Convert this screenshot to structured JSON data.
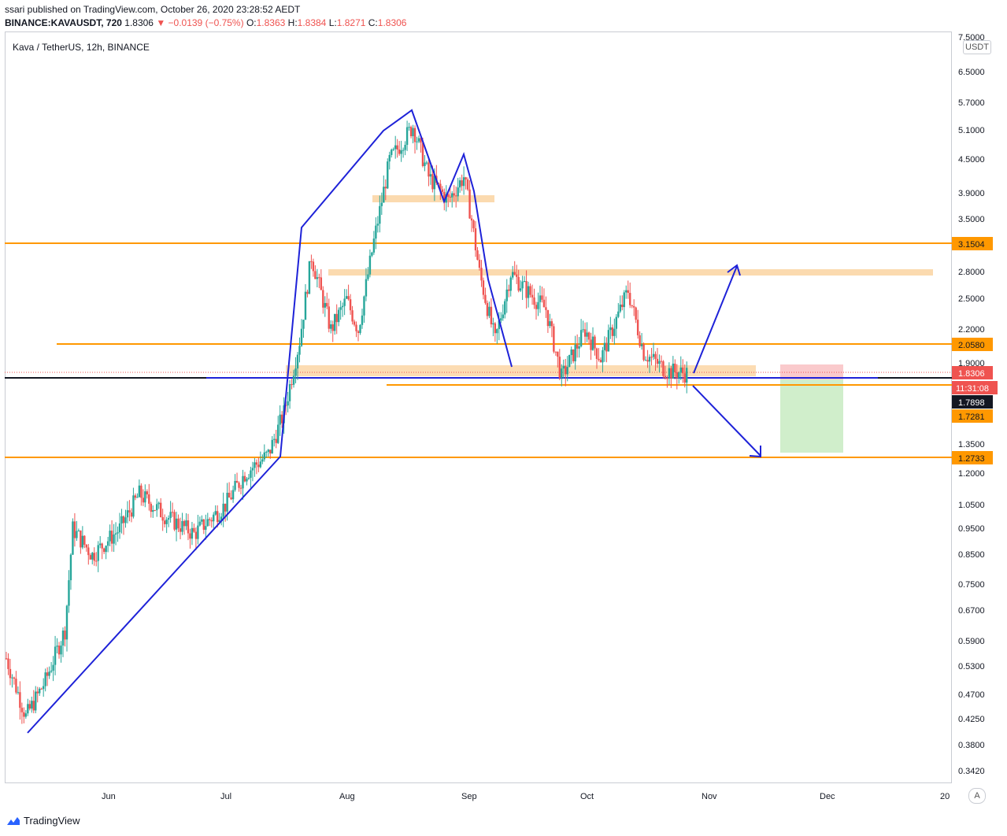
{
  "header": {
    "published": "ssari published on TradingView.com, October 26, 2020 23:28:52 AEDT",
    "symbol": "BINANCE:KAVAUSDT, 720",
    "last": "1.8306",
    "change": "▼ −0.0139 (−0.75%)",
    "open_label": "O:",
    "open": "1.8363",
    "high_label": "H:",
    "high": "1.8384",
    "low_label": "L:",
    "low": "1.8271",
    "close_label": "C:",
    "close": "1.8306"
  },
  "chart_title": "Kava / TetherUS, 12h, BINANCE",
  "currency_button": "USDT",
  "auto_button": "A",
  "footer_logo": "TradingView",
  "price_axis": [
    "7.5000",
    "6.5000",
    "5.7000",
    "5.1000",
    "4.5000",
    "3.9000",
    "3.5000",
    "2.8000",
    "2.5000",
    "2.2000",
    "1.9000",
    "1.3500",
    "1.2000",
    "1.0500",
    "0.9500",
    "0.8500",
    "0.7500",
    "0.6700",
    "0.5900",
    "0.5300",
    "0.4700",
    "0.4250",
    "0.3800",
    "0.3420"
  ],
  "time_axis": [
    "Jun",
    "Jul",
    "Aug",
    "Sep",
    "Oct",
    "Nov",
    "Dec",
    "20"
  ],
  "badges": {
    "level_3": "3.1504",
    "level_2": "2.0580",
    "last_price": "1.8306",
    "countdown": "11:31:08",
    "crosshair": "1.7898",
    "level_1": "1.7281",
    "level_0": "1.2733"
  },
  "colors": {
    "up": "#26a69a",
    "down": "#ef5350",
    "drawing": "#1e22d8",
    "level": "#ff9800",
    "zone": "#fbd6a6"
  },
  "chart_data": {
    "type": "candlestick",
    "title": "Kava / TetherUS, 12h, BINANCE",
    "scale": "log",
    "ylim": [
      0.33,
      7.6
    ],
    "xlim": [
      "2020-05-05",
      "2021-01-01"
    ],
    "horizontal_levels": [
      3.1504,
      2.058,
      1.7281,
      1.2733
    ],
    "close_path": [
      [
        "2020-05-05",
        0.55
      ],
      [
        "2020-05-10",
        0.43
      ],
      [
        "2020-05-15",
        0.5
      ],
      [
        "2020-05-20",
        0.62
      ],
      [
        "2020-05-22",
        0.95
      ],
      [
        "2020-05-27",
        0.85
      ],
      [
        "2020-06-03",
        0.95
      ],
      [
        "2020-06-08",
        1.1
      ],
      [
        "2020-06-15",
        1.0
      ],
      [
        "2020-06-22",
        0.93
      ],
      [
        "2020-06-30",
        1.05
      ],
      [
        "2020-07-05",
        1.2
      ],
      [
        "2020-07-11",
        1.3
      ],
      [
        "2020-07-15",
        1.55
      ],
      [
        "2020-07-19",
        2.1
      ],
      [
        "2020-07-22",
        3.0
      ],
      [
        "2020-07-27",
        2.2
      ],
      [
        "2020-07-31",
        2.5
      ],
      [
        "2020-08-03",
        2.2
      ],
      [
        "2020-08-07",
        3.2
      ],
      [
        "2020-08-11",
        4.5
      ],
      [
        "2020-08-17",
        5.2
      ],
      [
        "2020-08-21",
        4.2
      ],
      [
        "2020-08-26",
        3.8
      ],
      [
        "2020-08-30",
        4.2
      ],
      [
        "2020-09-01",
        3.5
      ],
      [
        "2020-09-03",
        2.8
      ],
      [
        "2020-09-07",
        2.1
      ],
      [
        "2020-09-11",
        2.8
      ],
      [
        "2020-09-15",
        2.6
      ],
      [
        "2020-09-20",
        2.4
      ],
      [
        "2020-09-24",
        1.8
      ],
      [
        "2020-09-30",
        2.2
      ],
      [
        "2020-10-04",
        1.95
      ],
      [
        "2020-10-08",
        2.3
      ],
      [
        "2020-10-11",
        2.6
      ],
      [
        "2020-10-15",
        2.0
      ],
      [
        "2020-10-21",
        1.85
      ],
      [
        "2020-10-26",
        1.8306
      ]
    ]
  }
}
